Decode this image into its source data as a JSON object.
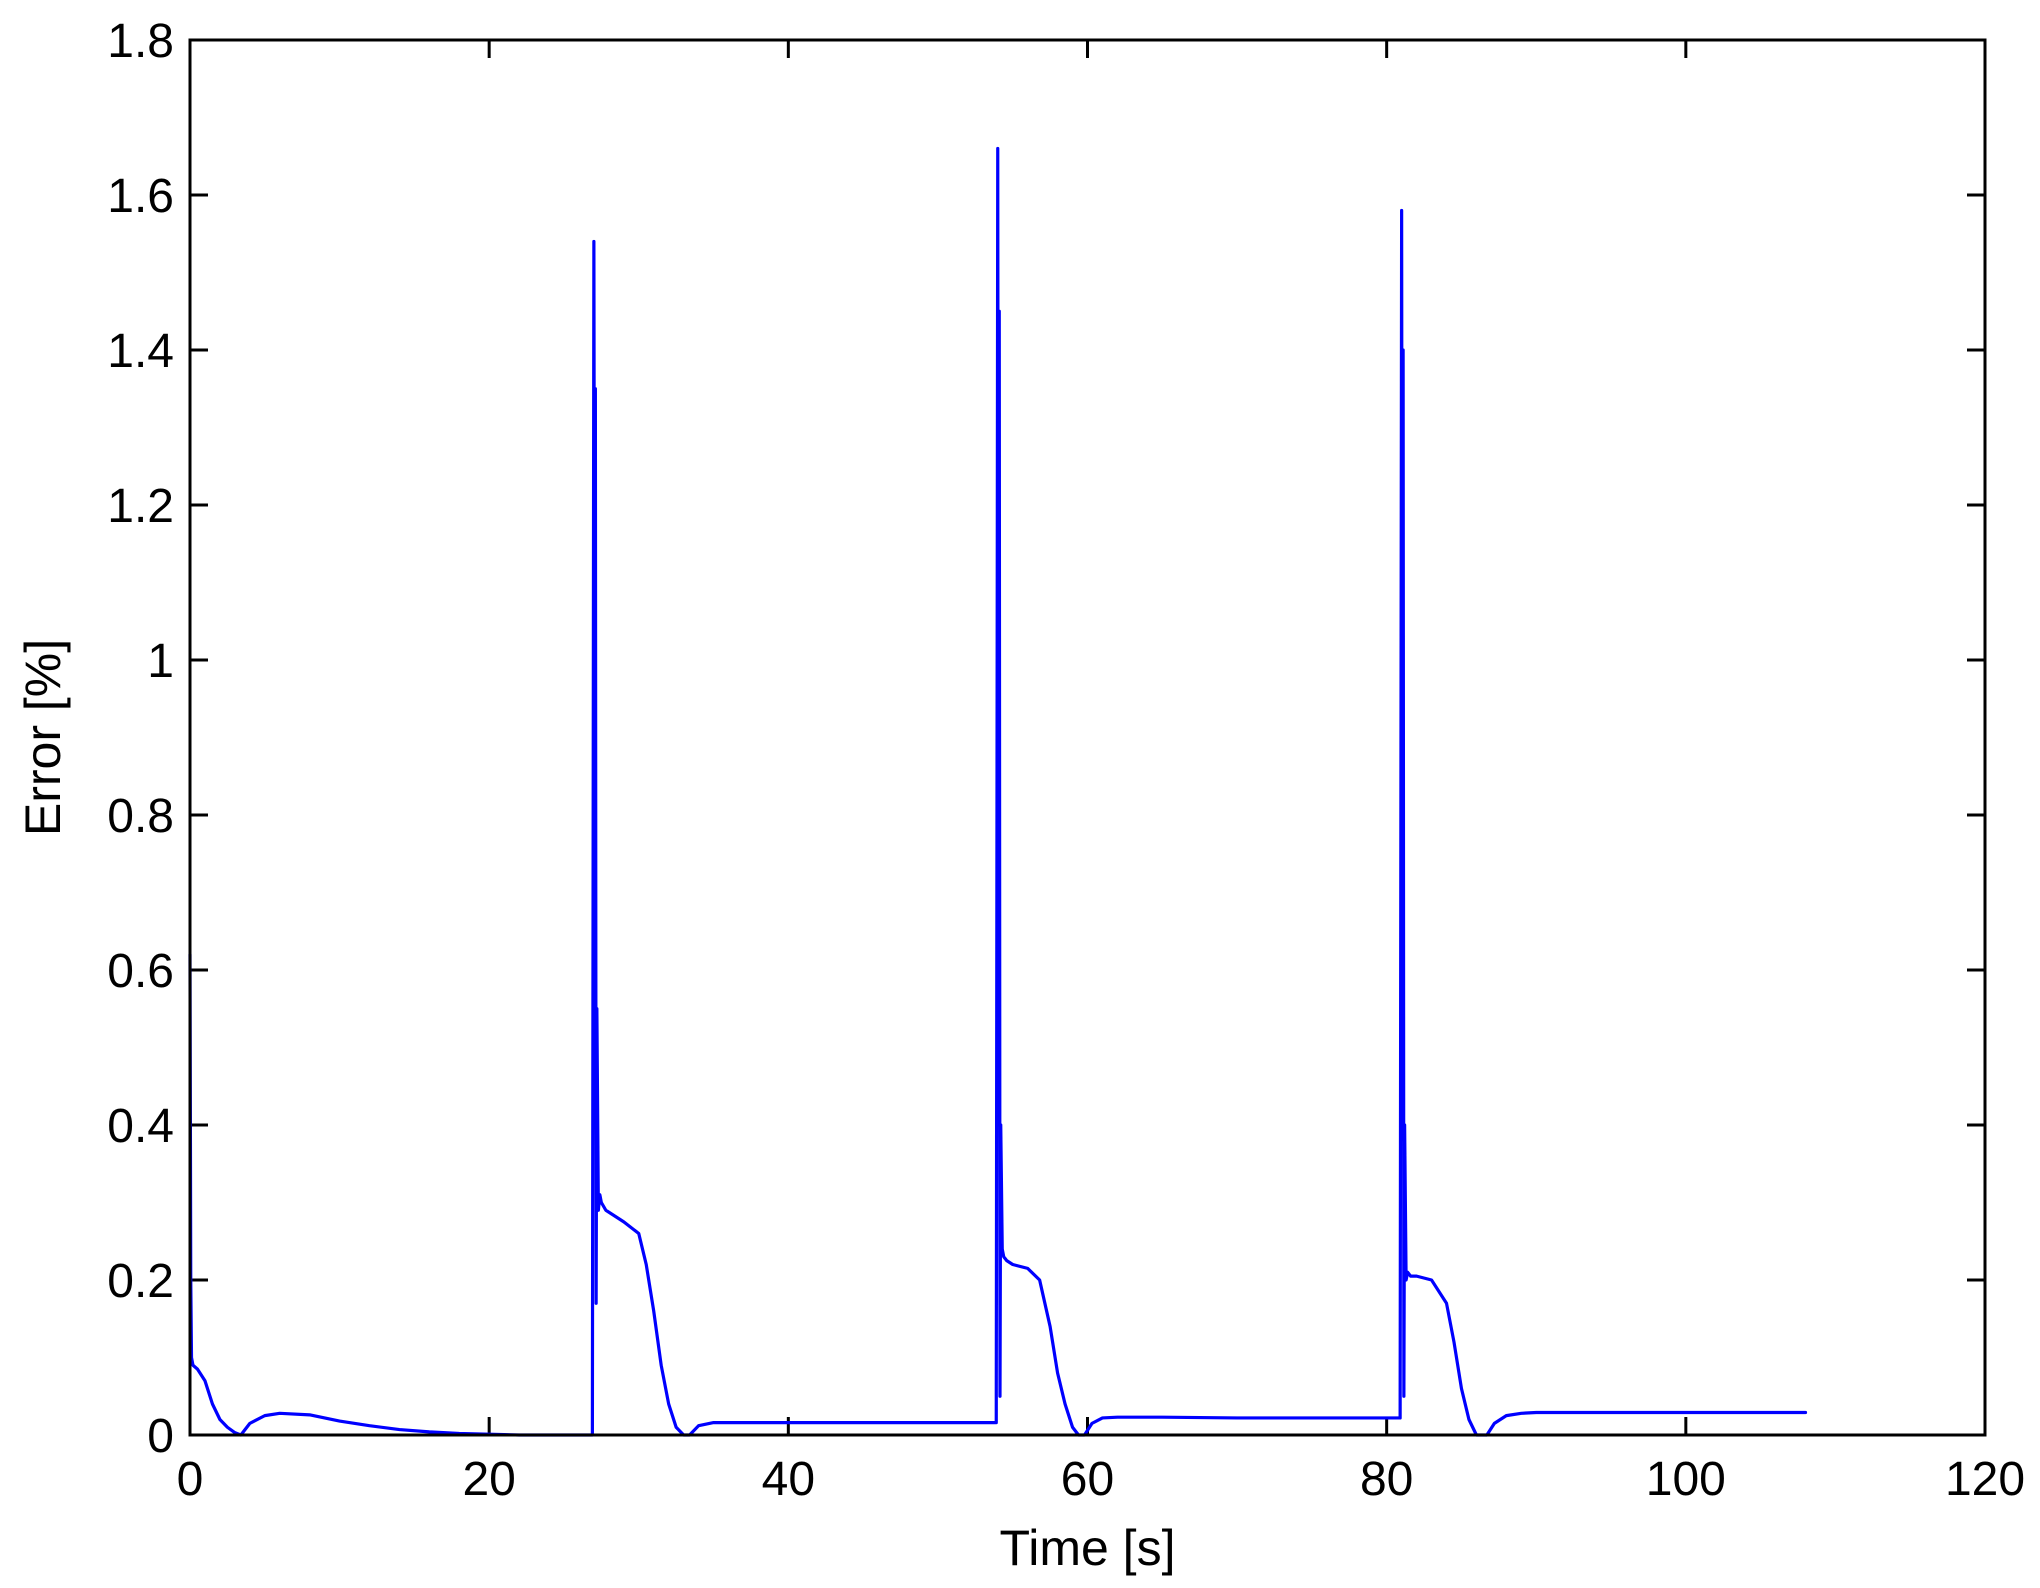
{
  "chart_data": {
    "type": "line",
    "xlabel": "Time [s]",
    "ylabel": "Error [%]",
    "xlim": [
      0,
      120
    ],
    "ylim": [
      0,
      1.8
    ],
    "xticks": [
      0,
      20,
      40,
      60,
      80,
      100,
      120
    ],
    "yticks": [
      0,
      0.2,
      0.4,
      0.6,
      0.8,
      1,
      1.2,
      1.4,
      1.6,
      1.8
    ],
    "xtick_labels": [
      "0",
      "20",
      "40",
      "60",
      "80",
      "100",
      "120"
    ],
    "ytick_labels": [
      "0",
      "0.2",
      "0.4",
      "0.6",
      "0.8",
      "1",
      "1.2",
      "1.4",
      "1.6",
      "1.8"
    ],
    "grid": false,
    "series": [
      {
        "color": "#0000ff",
        "x": [
          0,
          0.05,
          0.1,
          0.2,
          0.5,
          1,
          1.5,
          2,
          2.5,
          3,
          3.4,
          4,
          5,
          6,
          8,
          10,
          12,
          14,
          16,
          18,
          20,
          22,
          24,
          26,
          26.9,
          27.0,
          27.05,
          27.1,
          27.15,
          27.2,
          27.3,
          27.4,
          27.5,
          27.8,
          28.2,
          29,
          30,
          30.5,
          31,
          31.5,
          32,
          32.5,
          33,
          33.4,
          34,
          35,
          38,
          42,
          46,
          50,
          53.9,
          54.0,
          54.05,
          54.1,
          54.15,
          54.2,
          54.3,
          54.4,
          54.6,
          55,
          56,
          56.8,
          57.5,
          58,
          58.5,
          59,
          59.4,
          59.8,
          60.3,
          61,
          62,
          65,
          70,
          75,
          80.9,
          81.0,
          81.05,
          81.1,
          81.15,
          81.2,
          81.3,
          81.4,
          81.6,
          82,
          83,
          84,
          84.5,
          85,
          85.5,
          86,
          86.4,
          86.7,
          87.2,
          88,
          89,
          90,
          95,
          100,
          108
        ],
        "y": [
          0.62,
          0.2,
          0.1,
          0.09,
          0.085,
          0.07,
          0.04,
          0.02,
          0.01,
          0.003,
          0.0,
          0.015,
          0.025,
          0.028,
          0.026,
          0.018,
          0.012,
          0.007,
          0.004,
          0.002,
          0.001,
          0.0,
          0.0,
          0.0,
          0.0,
          1.54,
          0.9,
          1.35,
          0.17,
          0.55,
          0.29,
          0.31,
          0.3,
          0.29,
          0.285,
          0.275,
          0.26,
          0.22,
          0.16,
          0.09,
          0.04,
          0.01,
          0.0,
          0.0,
          0.012,
          0.016,
          0.016,
          0.016,
          0.016,
          0.016,
          0.016,
          1.66,
          0.5,
          1.45,
          0.05,
          0.4,
          0.24,
          0.23,
          0.225,
          0.22,
          0.215,
          0.2,
          0.14,
          0.08,
          0.04,
          0.01,
          0.0,
          0.0,
          0.015,
          0.022,
          0.023,
          0.023,
          0.022,
          0.022,
          0.022,
          1.58,
          0.6,
          1.4,
          0.05,
          0.4,
          0.2,
          0.21,
          0.205,
          0.205,
          0.2,
          0.17,
          0.12,
          0.06,
          0.02,
          0.0,
          0.0,
          0.0,
          0.015,
          0.025,
          0.028,
          0.029,
          0.029,
          0.029,
          0.029
        ]
      }
    ]
  }
}
